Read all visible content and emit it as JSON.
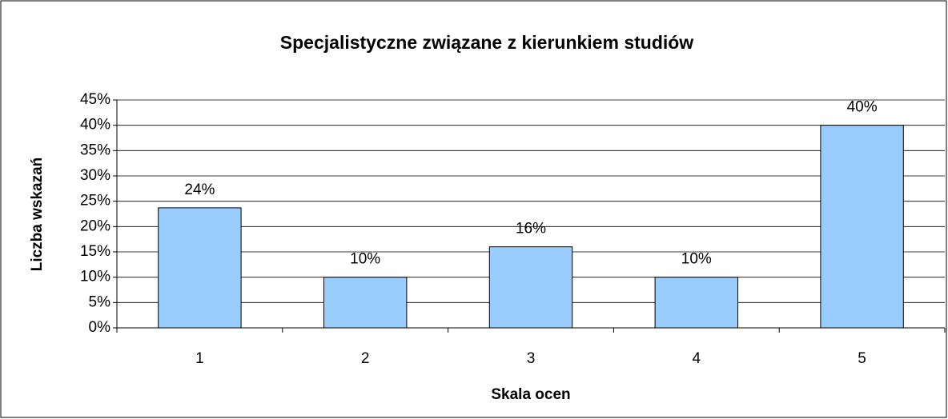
{
  "chart_data": {
    "type": "bar",
    "title": "Specjalistyczne związane z kierunkiem studiów",
    "x_label": "Skala ocen",
    "y_label": "Liczba wskazań",
    "categories": [
      "1",
      "2",
      "3",
      "4",
      "5"
    ],
    "values": [
      23.7,
      10,
      16,
      10,
      40
    ],
    "value_labels": [
      "24%",
      "10%",
      "16%",
      "10%",
      "40%"
    ],
    "color": "#99ccff",
    "ylim": [
      0,
      45
    ],
    "yticks": [
      {
        "value": 0,
        "label": "0%"
      },
      {
        "value": 5,
        "label": "5%"
      },
      {
        "value": 10,
        "label": "10%"
      },
      {
        "value": 15,
        "label": "15%"
      },
      {
        "value": 20,
        "label": "20%"
      },
      {
        "value": 25,
        "label": "25%"
      },
      {
        "value": 30,
        "label": "30%"
      },
      {
        "value": 35,
        "label": "35%"
      },
      {
        "value": 40,
        "label": "40%"
      },
      {
        "value": 45,
        "label": "45%"
      }
    ],
    "grid": true
  }
}
